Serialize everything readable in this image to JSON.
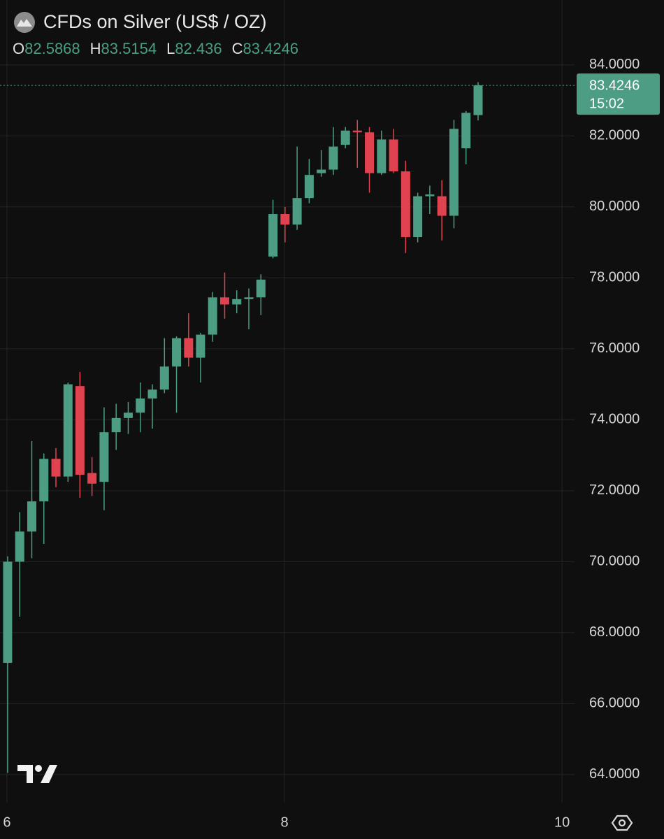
{
  "chart_data": {
    "type": "candlestick",
    "title": "CFDs on Silver (US$ / OZ)",
    "ohlc_labels": [
      "O",
      "H",
      "L",
      "C"
    ],
    "countdown": "15:02",
    "up_color": "#4c9d83",
    "down_color": "#e0434f",
    "grid": true,
    "x": [
      6.005,
      6.092,
      6.179,
      6.266,
      6.353,
      6.44,
      6.526,
      6.613,
      6.7,
      6.787,
      6.874,
      6.961,
      7.048,
      7.135,
      7.222,
      7.309,
      7.395,
      7.482,
      7.569,
      7.656,
      7.743,
      7.83,
      7.917,
      8.004,
      8.091,
      8.178,
      8.265,
      8.352,
      8.439,
      8.525,
      8.612,
      8.699,
      8.786,
      8.873,
      8.96,
      9.047,
      9.134,
      9.221,
      9.308,
      9.395
    ],
    "open": [
      67.15,
      70.0,
      70.85,
      71.7,
      72.9,
      72.4,
      74.95,
      72.5,
      72.25,
      73.65,
      74.05,
      74.2,
      74.6,
      74.85,
      75.5,
      76.3,
      75.75,
      76.4,
      77.45,
      77.25,
      77.4,
      77.45,
      78.6,
      79.8,
      79.5,
      80.25,
      80.95,
      81.05,
      81.75,
      82.15,
      82.1,
      80.95,
      81.9,
      81.0,
      79.15,
      80.3,
      80.3,
      79.75,
      81.65,
      82.5868
    ],
    "high": [
      70.15,
      71.4,
      73.4,
      73.05,
      73.2,
      75.05,
      75.35,
      72.95,
      74.35,
      74.45,
      74.5,
      75.05,
      75.0,
      76.3,
      76.35,
      77.0,
      76.45,
      77.6,
      78.15,
      77.65,
      77.7,
      78.1,
      80.2,
      80.0,
      81.7,
      81.35,
      81.6,
      82.25,
      82.25,
      82.45,
      82.25,
      82.15,
      82.2,
      81.3,
      80.4,
      80.6,
      80.75,
      82.45,
      82.7,
      83.5154
    ],
    "low": [
      64.05,
      68.45,
      70.1,
      70.5,
      72.1,
      72.25,
      71.8,
      71.85,
      71.45,
      73.15,
      73.6,
      73.65,
      73.75,
      74.75,
      74.2,
      75.5,
      75.05,
      76.2,
      76.85,
      77.0,
      76.55,
      76.95,
      78.55,
      79.0,
      79.35,
      80.1,
      80.85,
      80.9,
      81.65,
      81.1,
      80.4,
      80.9,
      80.95,
      78.7,
      79.0,
      79.8,
      79.05,
      79.4,
      81.2,
      82.436
    ],
    "close": [
      70.0,
      70.85,
      71.7,
      72.9,
      72.4,
      75.0,
      72.45,
      72.2,
      73.65,
      74.05,
      74.2,
      74.6,
      74.85,
      75.5,
      76.3,
      75.75,
      76.4,
      77.45,
      77.25,
      77.4,
      77.45,
      77.95,
      79.8,
      79.5,
      80.25,
      80.9,
      81.05,
      81.7,
      82.15,
      82.1,
      80.95,
      81.9,
      81.0,
      79.15,
      80.3,
      80.35,
      79.75,
      82.2,
      82.65,
      83.4246
    ],
    "xlim": [
      5.95,
      10.09
    ],
    "xticks": [
      6,
      8,
      10
    ],
    "ylim": [
      63.21,
      85.83
    ],
    "yticks": [
      {
        "value": 84,
        "label": "84.0000"
      },
      {
        "value": 82,
        "label": "82.0000"
      },
      {
        "value": 80,
        "label": "80.0000"
      },
      {
        "value": 78,
        "label": "78.0000"
      },
      {
        "value": 76,
        "label": "76.0000"
      },
      {
        "value": 74,
        "label": "74.0000"
      },
      {
        "value": 72,
        "label": "72.0000"
      },
      {
        "value": 70,
        "label": "70.0000"
      },
      {
        "value": 68,
        "label": "68.0000"
      },
      {
        "value": 66,
        "label": "66.0000"
      },
      {
        "value": 64,
        "label": "64.0000"
      }
    ]
  }
}
